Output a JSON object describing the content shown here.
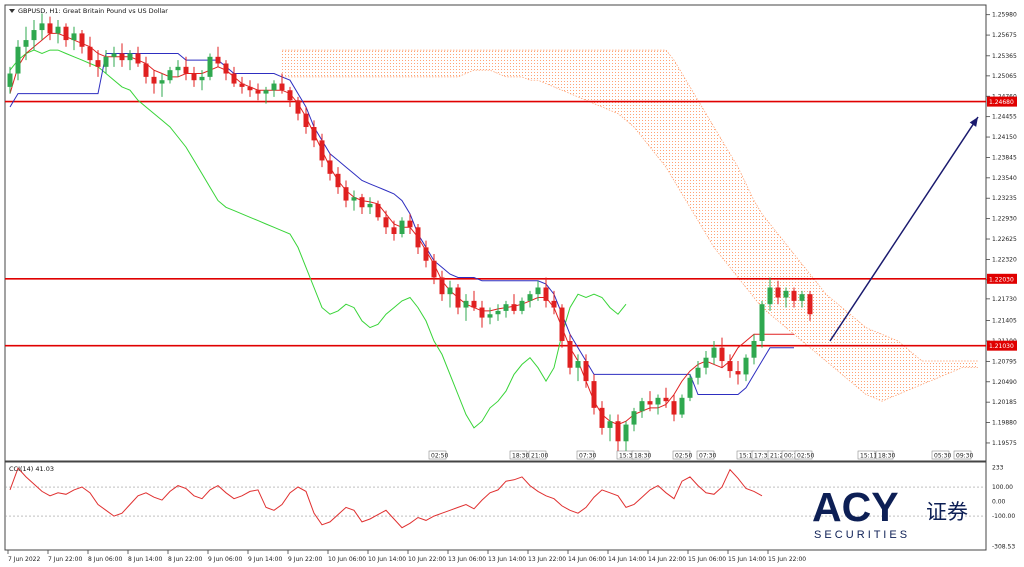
{
  "chart_data": {
    "type": "candlestick",
    "symbol_line": "GBPUSD, H1: Great Britain Pound vs US Dollar",
    "price_axis": {
      "labels": [
        "1.25980",
        "1.25675",
        "1.25365",
        "1.25065",
        "1.24760",
        "1.24455",
        "1.24150",
        "1.23845",
        "1.23540",
        "1.23235",
        "1.22930",
        "1.22625",
        "1.22320",
        "1.22015",
        "1.21730",
        "1.21405",
        "1.21100",
        "1.20795",
        "1.20490",
        "1.20185",
        "1.19880",
        "1.19575"
      ],
      "ylim": [
        1.1935,
        1.2605
      ]
    },
    "levels": [
      {
        "price": 1.2468,
        "label": "1.24680",
        "color": "#e00000"
      },
      {
        "price": 1.2203,
        "label": "1.22030",
        "color": "#e00000"
      },
      {
        "price": 1.2103,
        "label": "1.21030",
        "color": "#e00000"
      }
    ],
    "forecast_arrow": {
      "from": [
        830,
        1.211
      ],
      "to": [
        978,
        1.2445
      ],
      "color": "#1a1a6e"
    },
    "candles": [
      [
        1.249,
        1.252,
        1.248,
        1.251
      ],
      [
        1.251,
        1.256,
        1.25,
        1.255
      ],
      [
        1.255,
        1.258,
        1.253,
        1.256
      ],
      [
        1.256,
        1.259,
        1.2545,
        1.2575
      ],
      [
        1.2575,
        1.26,
        1.256,
        1.2585
      ],
      [
        1.2585,
        1.2595,
        1.256,
        1.257
      ],
      [
        1.257,
        1.259,
        1.2555,
        1.258
      ],
      [
        1.258,
        1.2585,
        1.255,
        1.256
      ],
      [
        1.256,
        1.258,
        1.2545,
        1.257
      ],
      [
        1.257,
        1.2575,
        1.254,
        1.255
      ],
      [
        1.255,
        1.2565,
        1.252,
        1.253
      ],
      [
        1.253,
        1.2545,
        1.2505,
        1.252
      ],
      [
        1.252,
        1.2545,
        1.251,
        1.2535
      ],
      [
        1.2535,
        1.255,
        1.252,
        1.254
      ],
      [
        1.254,
        1.2555,
        1.252,
        1.253
      ],
      [
        1.253,
        1.2545,
        1.2515,
        1.254
      ],
      [
        1.254,
        1.255,
        1.252,
        1.2525
      ],
      [
        1.2525,
        1.2535,
        1.2495,
        1.2505
      ],
      [
        1.2505,
        1.2515,
        1.248,
        1.2495
      ],
      [
        1.2495,
        1.251,
        1.2475,
        1.25
      ],
      [
        1.25,
        1.252,
        1.2495,
        1.2515
      ],
      [
        1.2515,
        1.253,
        1.2505,
        1.252
      ],
      [
        1.252,
        1.2535,
        1.25,
        1.251
      ],
      [
        1.251,
        1.252,
        1.249,
        1.25
      ],
      [
        1.25,
        1.2515,
        1.2485,
        1.2505
      ],
      [
        1.2505,
        1.254,
        1.25,
        1.2535
      ],
      [
        1.2535,
        1.255,
        1.252,
        1.2525
      ],
      [
        1.2525,
        1.253,
        1.25,
        1.251
      ],
      [
        1.251,
        1.252,
        1.249,
        1.2495
      ],
      [
        1.2495,
        1.2505,
        1.248,
        1.249
      ],
      [
        1.249,
        1.25,
        1.2475,
        1.2485
      ],
      [
        1.2485,
        1.2495,
        1.247,
        1.248
      ],
      [
        1.248,
        1.249,
        1.2465,
        1.2485
      ],
      [
        1.2485,
        1.25,
        1.2475,
        1.2495
      ],
      [
        1.2495,
        1.251,
        1.248,
        1.2485
      ],
      [
        1.2485,
        1.249,
        1.246,
        1.247
      ],
      [
        1.247,
        1.2475,
        1.244,
        1.245
      ],
      [
        1.245,
        1.246,
        1.242,
        1.243
      ],
      [
        1.243,
        1.244,
        1.24,
        1.241
      ],
      [
        1.241,
        1.242,
        1.237,
        1.238
      ],
      [
        1.238,
        1.239,
        1.235,
        1.236
      ],
      [
        1.236,
        1.237,
        1.233,
        1.234
      ],
      [
        1.234,
        1.235,
        1.231,
        1.232
      ],
      [
        1.232,
        1.2335,
        1.2305,
        1.2325
      ],
      [
        1.2325,
        1.233,
        1.23,
        1.231
      ],
      [
        1.231,
        1.2325,
        1.23,
        1.2315
      ],
      [
        1.2315,
        1.232,
        1.229,
        1.2295
      ],
      [
        1.2295,
        1.2305,
        1.227,
        1.228
      ],
      [
        1.228,
        1.229,
        1.226,
        1.227
      ],
      [
        1.227,
        1.2295,
        1.2265,
        1.229
      ],
      [
        1.229,
        1.23,
        1.227,
        1.228
      ],
      [
        1.228,
        1.2285,
        1.224,
        1.225
      ],
      [
        1.225,
        1.226,
        1.222,
        1.223
      ],
      [
        1.223,
        1.224,
        1.2195,
        1.2205
      ],
      [
        1.2205,
        1.2215,
        1.217,
        1.218
      ],
      [
        1.218,
        1.22,
        1.216,
        1.219
      ],
      [
        1.219,
        1.2195,
        1.215,
        1.216
      ],
      [
        1.216,
        1.218,
        1.214,
        1.217
      ],
      [
        1.217,
        1.2185,
        1.2155,
        1.216
      ],
      [
        1.216,
        1.217,
        1.213,
        1.2145
      ],
      [
        1.2145,
        1.216,
        1.2135,
        1.215
      ],
      [
        1.215,
        1.2165,
        1.214,
        1.2155
      ],
      [
        1.2155,
        1.217,
        1.2145,
        1.2165
      ],
      [
        1.2165,
        1.218,
        1.215,
        1.2155
      ],
      [
        1.2155,
        1.2175,
        1.215,
        1.217
      ],
      [
        1.217,
        1.2185,
        1.216,
        1.218
      ],
      [
        1.218,
        1.22,
        1.217,
        1.219
      ],
      [
        1.219,
        1.2205,
        1.216,
        1.217
      ],
      [
        1.217,
        1.2185,
        1.215,
        1.216
      ],
      [
        1.216,
        1.2165,
        1.21,
        1.211
      ],
      [
        1.211,
        1.212,
        1.206,
        1.207
      ],
      [
        1.207,
        1.209,
        1.205,
        1.208
      ],
      [
        1.208,
        1.209,
        1.204,
        1.205
      ],
      [
        1.205,
        1.206,
        1.2,
        1.201
      ],
      [
        1.201,
        1.202,
        1.197,
        1.198
      ],
      [
        1.198,
        1.2,
        1.196,
        1.199
      ],
      [
        1.199,
        1.2,
        1.194,
        1.196
      ],
      [
        1.196,
        1.199,
        1.1945,
        1.1985
      ],
      [
        1.1985,
        1.201,
        1.1975,
        1.2005
      ],
      [
        1.2005,
        1.2025,
        1.1995,
        1.202
      ],
      [
        1.202,
        1.2035,
        1.2005,
        1.2015
      ],
      [
        1.2015,
        1.203,
        1.2,
        1.2025
      ],
      [
        1.2025,
        1.204,
        1.201,
        1.202
      ],
      [
        1.202,
        1.203,
        1.199,
        1.2
      ],
      [
        1.2,
        1.203,
        1.1995,
        1.2025
      ],
      [
        1.2025,
        1.206,
        1.202,
        1.2055
      ],
      [
        1.2055,
        1.208,
        1.2045,
        1.207
      ],
      [
        1.207,
        1.2095,
        1.206,
        1.2085
      ],
      [
        1.2085,
        1.211,
        1.2075,
        1.21
      ],
      [
        1.21,
        1.2115,
        1.207,
        1.208
      ],
      [
        1.208,
        1.209,
        1.2055,
        1.2065
      ],
      [
        1.2065,
        1.208,
        1.2045,
        1.206
      ],
      [
        1.206,
        1.209,
        1.205,
        1.2085
      ],
      [
        1.2085,
        1.212,
        1.2075,
        1.211
      ],
      [
        1.211,
        1.217,
        1.21,
        1.2165
      ],
      [
        1.2165,
        1.2205,
        1.2155,
        1.219
      ],
      [
        1.219,
        1.22,
        1.2165,
        1.2175
      ],
      [
        1.2175,
        1.219,
        1.216,
        1.2185
      ],
      [
        1.2185,
        1.219,
        1.216,
        1.217
      ],
      [
        1.217,
        1.2185,
        1.216,
        1.218
      ],
      [
        1.218,
        1.2185,
        1.214,
        1.215
      ]
    ],
    "kijun": [
      1.246,
      1.248,
      1.248,
      1.248,
      1.248,
      1.248,
      1.248,
      1.248,
      1.248,
      1.248,
      1.248,
      1.248,
      1.254,
      1.254,
      1.254,
      1.254,
      1.254,
      1.254,
      1.254,
      1.254,
      1.254,
      1.254,
      1.253,
      1.253,
      1.253,
      1.253,
      1.253,
      1.252,
      1.251,
      1.251,
      1.251,
      1.251,
      1.251,
      1.251,
      1.2505,
      1.25,
      1.248,
      1.246,
      1.243,
      1.241,
      1.239,
      1.238,
      1.237,
      1.236,
      1.235,
      1.2345,
      1.234,
      1.2335,
      1.233,
      1.232,
      1.23,
      1.227,
      1.225,
      1.223,
      1.222,
      1.221,
      1.2205,
      1.2205,
      1.2205,
      1.22,
      1.22,
      1.22,
      1.22,
      1.22,
      1.22,
      1.22,
      1.22,
      1.2195,
      1.218,
      1.215,
      1.212,
      1.21,
      1.208,
      1.206,
      1.206,
      1.206,
      1.206,
      1.206,
      1.206,
      1.206,
      1.206,
      1.206,
      1.206,
      1.206,
      1.206,
      1.206,
      1.203,
      1.203,
      1.203,
      1.203,
      1.203,
      1.203,
      1.204,
      1.206,
      1.208,
      1.21,
      1.21,
      1.21,
      1.21
    ],
    "tenkan": [
      1.248,
      1.252,
      1.254,
      1.255,
      1.256,
      1.257,
      1.257,
      1.2565,
      1.256,
      1.2555,
      1.255,
      1.254,
      1.2535,
      1.2535,
      1.2535,
      1.2535,
      1.253,
      1.2525,
      1.2515,
      1.251,
      1.2505,
      1.2505,
      1.251,
      1.251,
      1.251,
      1.2515,
      1.252,
      1.2515,
      1.2505,
      1.2495,
      1.249,
      1.2485,
      1.2485,
      1.2485,
      1.2485,
      1.248,
      1.2465,
      1.2445,
      1.242,
      1.2395,
      1.237,
      1.235,
      1.2335,
      1.2325,
      1.232,
      1.2318,
      1.2315,
      1.23,
      1.2285,
      1.228,
      1.228,
      1.2265,
      1.2245,
      1.2225,
      1.22,
      1.2185,
      1.2175,
      1.2165,
      1.216,
      1.2155,
      1.2155,
      1.2158,
      1.216,
      1.2162,
      1.2165,
      1.217,
      1.2175,
      1.2175,
      1.216,
      1.213,
      1.21,
      1.208,
      1.205,
      1.202,
      1.2,
      1.199,
      1.1985,
      1.199,
      1.2,
      1.2005,
      1.201,
      1.201,
      1.2015,
      1.203,
      1.205,
      1.2065,
      1.2075,
      1.208,
      1.2075,
      1.207,
      1.208,
      1.21,
      1.211,
      1.212,
      1.212,
      1.212,
      1.212,
      1.212,
      1.212
    ],
    "chikou": [
      1.2515,
      1.253,
      1.254,
      1.2545,
      1.254,
      1.2545,
      1.2545,
      1.254,
      1.2535,
      1.253,
      1.2525,
      1.252,
      1.251,
      1.25,
      1.249,
      1.2485,
      1.247,
      1.246,
      1.245,
      1.244,
      1.243,
      1.2415,
      1.24,
      1.238,
      1.236,
      1.234,
      1.232,
      1.231,
      1.2305,
      1.23,
      1.2295,
      1.229,
      1.2285,
      1.228,
      1.2275,
      1.227,
      1.225,
      1.222,
      1.219,
      1.216,
      1.215,
      1.2155,
      1.2165,
      1.216,
      1.214,
      1.213,
      1.2135,
      1.215,
      1.216,
      1.217,
      1.2175,
      1.216,
      1.214,
      1.211,
      1.209,
      1.206,
      1.203,
      1.2,
      1.198,
      1.199,
      1.201,
      1.202,
      1.2035,
      1.206,
      1.2075,
      1.2085,
      1.207,
      1.205,
      1.207,
      1.212,
      1.216,
      1.218,
      1.2175,
      1.218,
      1.2175,
      1.216,
      1.215,
      1.2165
    ],
    "cloud_upper": [
      1.2545,
      1.2545,
      1.2545,
      1.2545,
      1.2545,
      1.2545,
      1.2545,
      1.2545,
      1.2545,
      1.2545,
      1.2545,
      1.2545,
      1.2545,
      1.2545,
      1.2545,
      1.2545,
      1.2545,
      1.2545,
      1.2545,
      1.2545,
      1.2545,
      1.2545,
      1.2545,
      1.2545,
      1.2545,
      1.2545,
      1.2545,
      1.2545,
      1.2545,
      1.2545,
      1.2545,
      1.2545,
      1.2545,
      1.2545,
      1.2545,
      1.2545,
      1.2545,
      1.2545,
      1.2545,
      1.2545,
      1.2545,
      1.2545,
      1.2545,
      1.2545,
      1.2545,
      1.2545,
      1.2545,
      1.2545,
      1.2545,
      1.253,
      1.251,
      1.249,
      1.247,
      1.245,
      1.243,
      1.241,
      1.239,
      1.237,
      1.2345,
      1.232,
      1.23,
      1.2285,
      1.227,
      1.2255,
      1.224,
      1.2225,
      1.221,
      1.2195,
      1.218,
      1.217,
      1.216,
      1.215,
      1.214,
      1.213,
      1.2125,
      1.212,
      1.2115,
      1.211,
      1.21,
      1.209,
      1.208,
      1.208,
      1.208,
      1.208,
      1.208,
      1.208,
      1.208,
      1.208,
      1.208,
      1.208,
      1.208,
      1.209,
      1.2095,
      1.21,
      1.21,
      1.21,
      1.2105,
      1.2105,
      1.2105,
      1.2105,
      1.2105,
      1.2105,
      1.2105,
      1.2105,
      1.2105,
      1.2105,
      1.2105,
      1.2105,
      1.2105,
      1.2105,
      1.2105,
      1.2105,
      1.2105,
      1.2105,
      1.2105,
      1.2105,
      1.2105
    ],
    "cloud_lower": [
      1.2505,
      1.2505,
      1.2505,
      1.2505,
      1.2505,
      1.2505,
      1.2505,
      1.2505,
      1.2505,
      1.2505,
      1.2505,
      1.2505,
      1.2505,
      1.2505,
      1.2505,
      1.2505,
      1.2505,
      1.2505,
      1.2505,
      1.2505,
      1.2505,
      1.2505,
      1.2505,
      1.251,
      1.2515,
      1.2515,
      1.2515,
      1.251,
      1.2505,
      1.2505,
      1.2505,
      1.25,
      1.25,
      1.2495,
      1.249,
      1.2485,
      1.248,
      1.2475,
      1.247,
      1.2465,
      1.246,
      1.2455,
      1.245,
      1.244,
      1.243,
      1.2415,
      1.24,
      1.2385,
      1.237,
      1.235,
      1.233,
      1.231,
      1.229,
      1.227,
      1.225,
      1.2235,
      1.222,
      1.2205,
      1.219,
      1.2175,
      1.216,
      1.215,
      1.214,
      1.213,
      1.212,
      1.211,
      1.21,
      1.209,
      1.208,
      1.207,
      1.206,
      1.205,
      1.204,
      1.203,
      1.2025,
      1.202,
      1.2025,
      1.203,
      1.2035,
      1.204,
      1.2045,
      1.205,
      1.2055,
      1.206,
      1.2065,
      1.207,
      1.207,
      1.207,
      1.207,
      1.207,
      1.207,
      1.207,
      1.207,
      1.207,
      1.207,
      1.207,
      1.207,
      1.207,
      1.207,
      1.207,
      1.207,
      1.207,
      1.207,
      1.207,
      1.207,
      1.207,
      1.207,
      1.207,
      1.207,
      1.207,
      1.207,
      1.207,
      1.207,
      1.207,
      1.207,
      1.207
    ],
    "time_labels": [
      "7 Jun 2022",
      "7 Jun 22:00",
      "8 Jun 06:00",
      "8 Jun 14:00",
      "8 Jun 22:00",
      "9 Jun 06:00",
      "9 Jun 14:00",
      "9 Jun 22:00",
      "10 Jun 06:00",
      "10 Jun 14:00",
      "10 Jun 22:00",
      "13 Jun 06:00",
      "13 Jun 14:00",
      "13 Jun 22:00",
      "14 Jun 06:00",
      "14 Jun 14:00",
      "14 Jun 22:00",
      "15 Jun 06:00",
      "15 Jun 14:00",
      "15 Jun 22:00"
    ],
    "period_markers": [
      "02:50",
      "18:30",
      "21:00",
      "07:30",
      "15:30",
      "18:30",
      "02:50",
      "07:30",
      "15:17",
      "17:30",
      "21:23",
      "00:30",
      "02:50",
      "15:11",
      "18:30",
      "05:30",
      "09:30"
    ],
    "cci": {
      "label": "CCI(14) 41.03",
      "axis_labels": [
        "233",
        "100.00",
        "0.00",
        "-100.00",
        "-308.53"
      ],
      "ylim": [
        -320,
        245
      ],
      "values": [
        80,
        230,
        170,
        120,
        70,
        40,
        60,
        50,
        80,
        100,
        60,
        -20,
        -60,
        -100,
        -80,
        -20,
        40,
        60,
        30,
        10,
        70,
        110,
        90,
        40,
        20,
        80,
        110,
        60,
        20,
        40,
        70,
        80,
        -40,
        -60,
        -20,
        60,
        100,
        70,
        -80,
        -160,
        -140,
        -90,
        -40,
        -60,
        -140,
        -120,
        -90,
        -60,
        -120,
        -180,
        -150,
        -110,
        -130,
        -100,
        -80,
        -60,
        -40,
        -20,
        -50,
        10,
        60,
        80,
        140,
        150,
        170,
        110,
        70,
        40,
        20,
        -30,
        -60,
        -80,
        -40,
        30,
        80,
        60,
        40,
        -40,
        -20,
        30,
        80,
        110,
        60,
        20,
        140,
        170,
        110,
        60,
        50,
        100,
        220,
        160,
        90,
        70,
        40
      ]
    }
  },
  "symbol_line": "GBPUSD, H1: Great Britain Pound vs US Dollar",
  "cci_label": "CCI(14) 41.03",
  "logo": {
    "brand": "ACY",
    "cn": "证券",
    "sub": "S E C U R I T I E S"
  },
  "colors": {
    "candle_bull": "#2fa84f",
    "candle_bear": "#e02020",
    "kijun": "#2e2ec0",
    "tenkan": "#e02020",
    "chikou": "#38d438",
    "cloud": "#ff9966",
    "cci": "#e03030"
  }
}
